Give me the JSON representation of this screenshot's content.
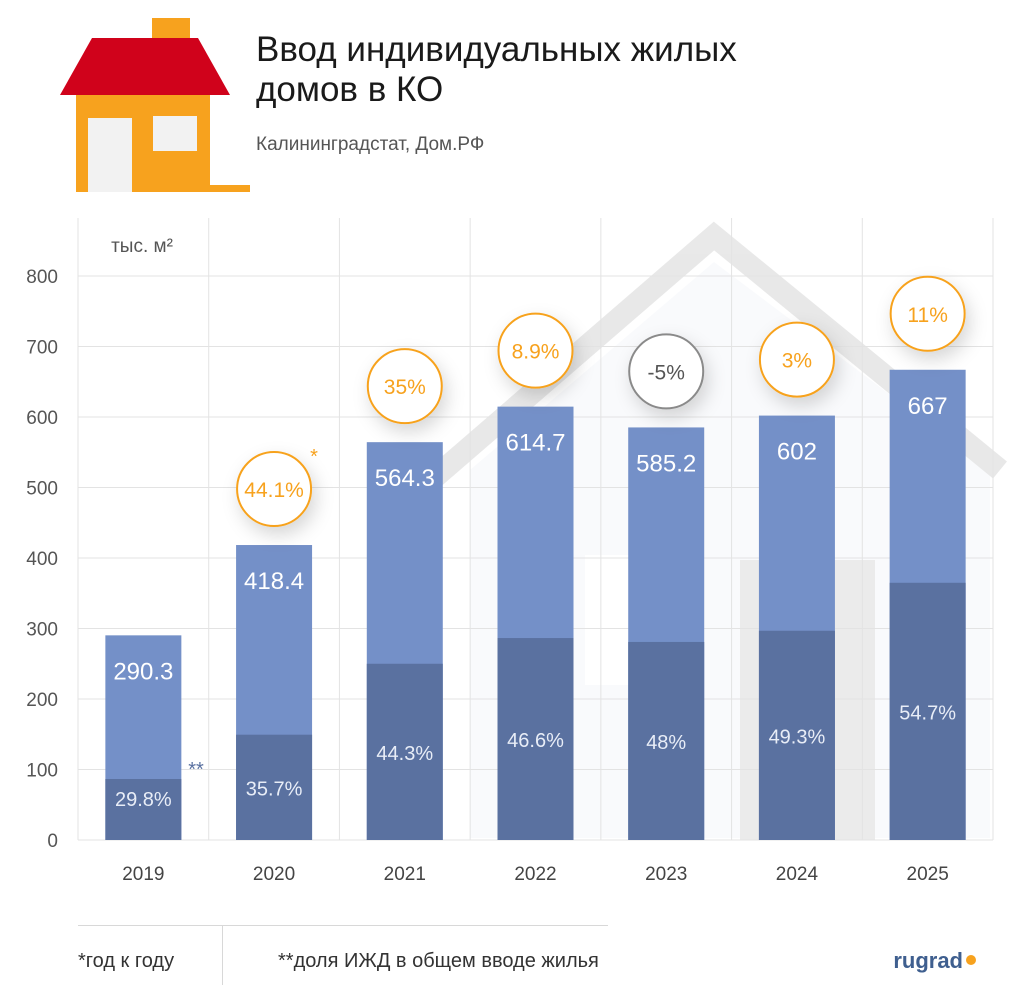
{
  "header": {
    "title": "Ввод индивидуальных жилых домов в КО",
    "source": "Калининградстат, Дом.РФ"
  },
  "colors": {
    "bar_total": "#7490c8",
    "bar_share": "#5a71a0",
    "accent_orange": "#f7a21e",
    "house_red": "#d0021b",
    "grey_circle": "#8a8a8a"
  },
  "icons": [
    "house-icon",
    "house-silhouette-icon"
  ],
  "chart_data": {
    "type": "bar",
    "title": "Ввод индивидуальных жилых домов в КО",
    "ylabel": "тыс. м²",
    "ylim": [
      0,
      800
    ],
    "yticks": [
      0,
      100,
      200,
      300,
      400,
      500,
      600,
      700,
      800
    ],
    "categories": [
      "2019",
      "2020",
      "2021",
      "2022",
      "2023",
      "2024",
      "2025"
    ],
    "series": [
      {
        "values": [
          290.3,
          418.4,
          564.3,
          614.7,
          585.2,
          602,
          667
        ],
        "labels": [
          "290.3",
          "418.4",
          "564.3",
          "614.7",
          "585.2",
          "602",
          "667"
        ]
      },
      {
        "share_percent": [
          29.8,
          35.7,
          44.3,
          46.6,
          48,
          49.3,
          54.7
        ],
        "labels": [
          "29.8%",
          "35.7%",
          "44.3%",
          "46.6%",
          "48%",
          "49.3%",
          "54.7%"
        ]
      }
    ],
    "growth_labels": [
      "44.1%",
      "35%",
      "8.9%",
      "-5%",
      "3%",
      "11%"
    ],
    "growth_categories": [
      "2020",
      "2021",
      "2022",
      "2023",
      "2024",
      "2025"
    ],
    "growth_negative": [
      false,
      false,
      false,
      true,
      false,
      false
    ],
    "annotations": {
      "growth_marker": "*",
      "share_marker": "**"
    },
    "grid": true
  },
  "footer": {
    "note1": "*год к году",
    "note2": "**доля ИЖД в общем вводе жилья",
    "logo": "rugrad"
  }
}
